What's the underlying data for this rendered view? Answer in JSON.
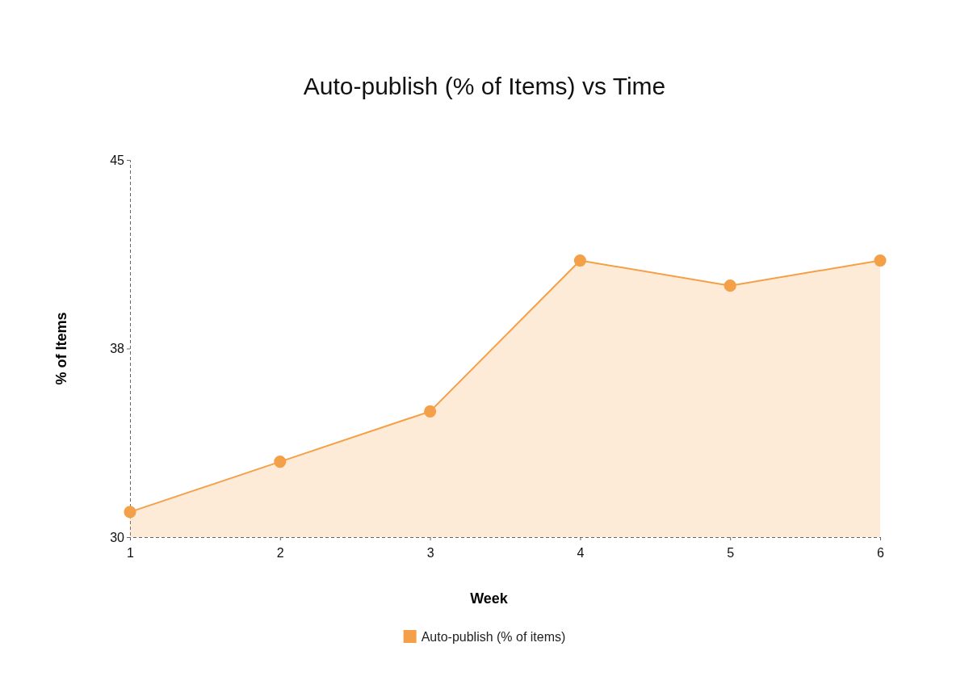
{
  "chart_data": {
    "type": "area",
    "title": "Auto-publish (% of Items) vs Time",
    "xlabel": "Week",
    "ylabel": "% of Items",
    "x": [
      1,
      2,
      3,
      4,
      5,
      6
    ],
    "series": [
      {
        "name": "Auto-publish (% of items)",
        "color": "#f4a048",
        "values": [
          31,
          33,
          35,
          41,
          40,
          41
        ]
      }
    ],
    "xlim": [
      1,
      6
    ],
    "xticks": [
      1,
      2,
      3,
      4,
      5,
      6
    ],
    "ylim": [
      30,
      45
    ],
    "yticks": [
      30,
      {
        "value": 37.5,
        "label": "38"
      },
      45
    ],
    "marker": "circle",
    "legend": "bottom",
    "grid": false
  }
}
